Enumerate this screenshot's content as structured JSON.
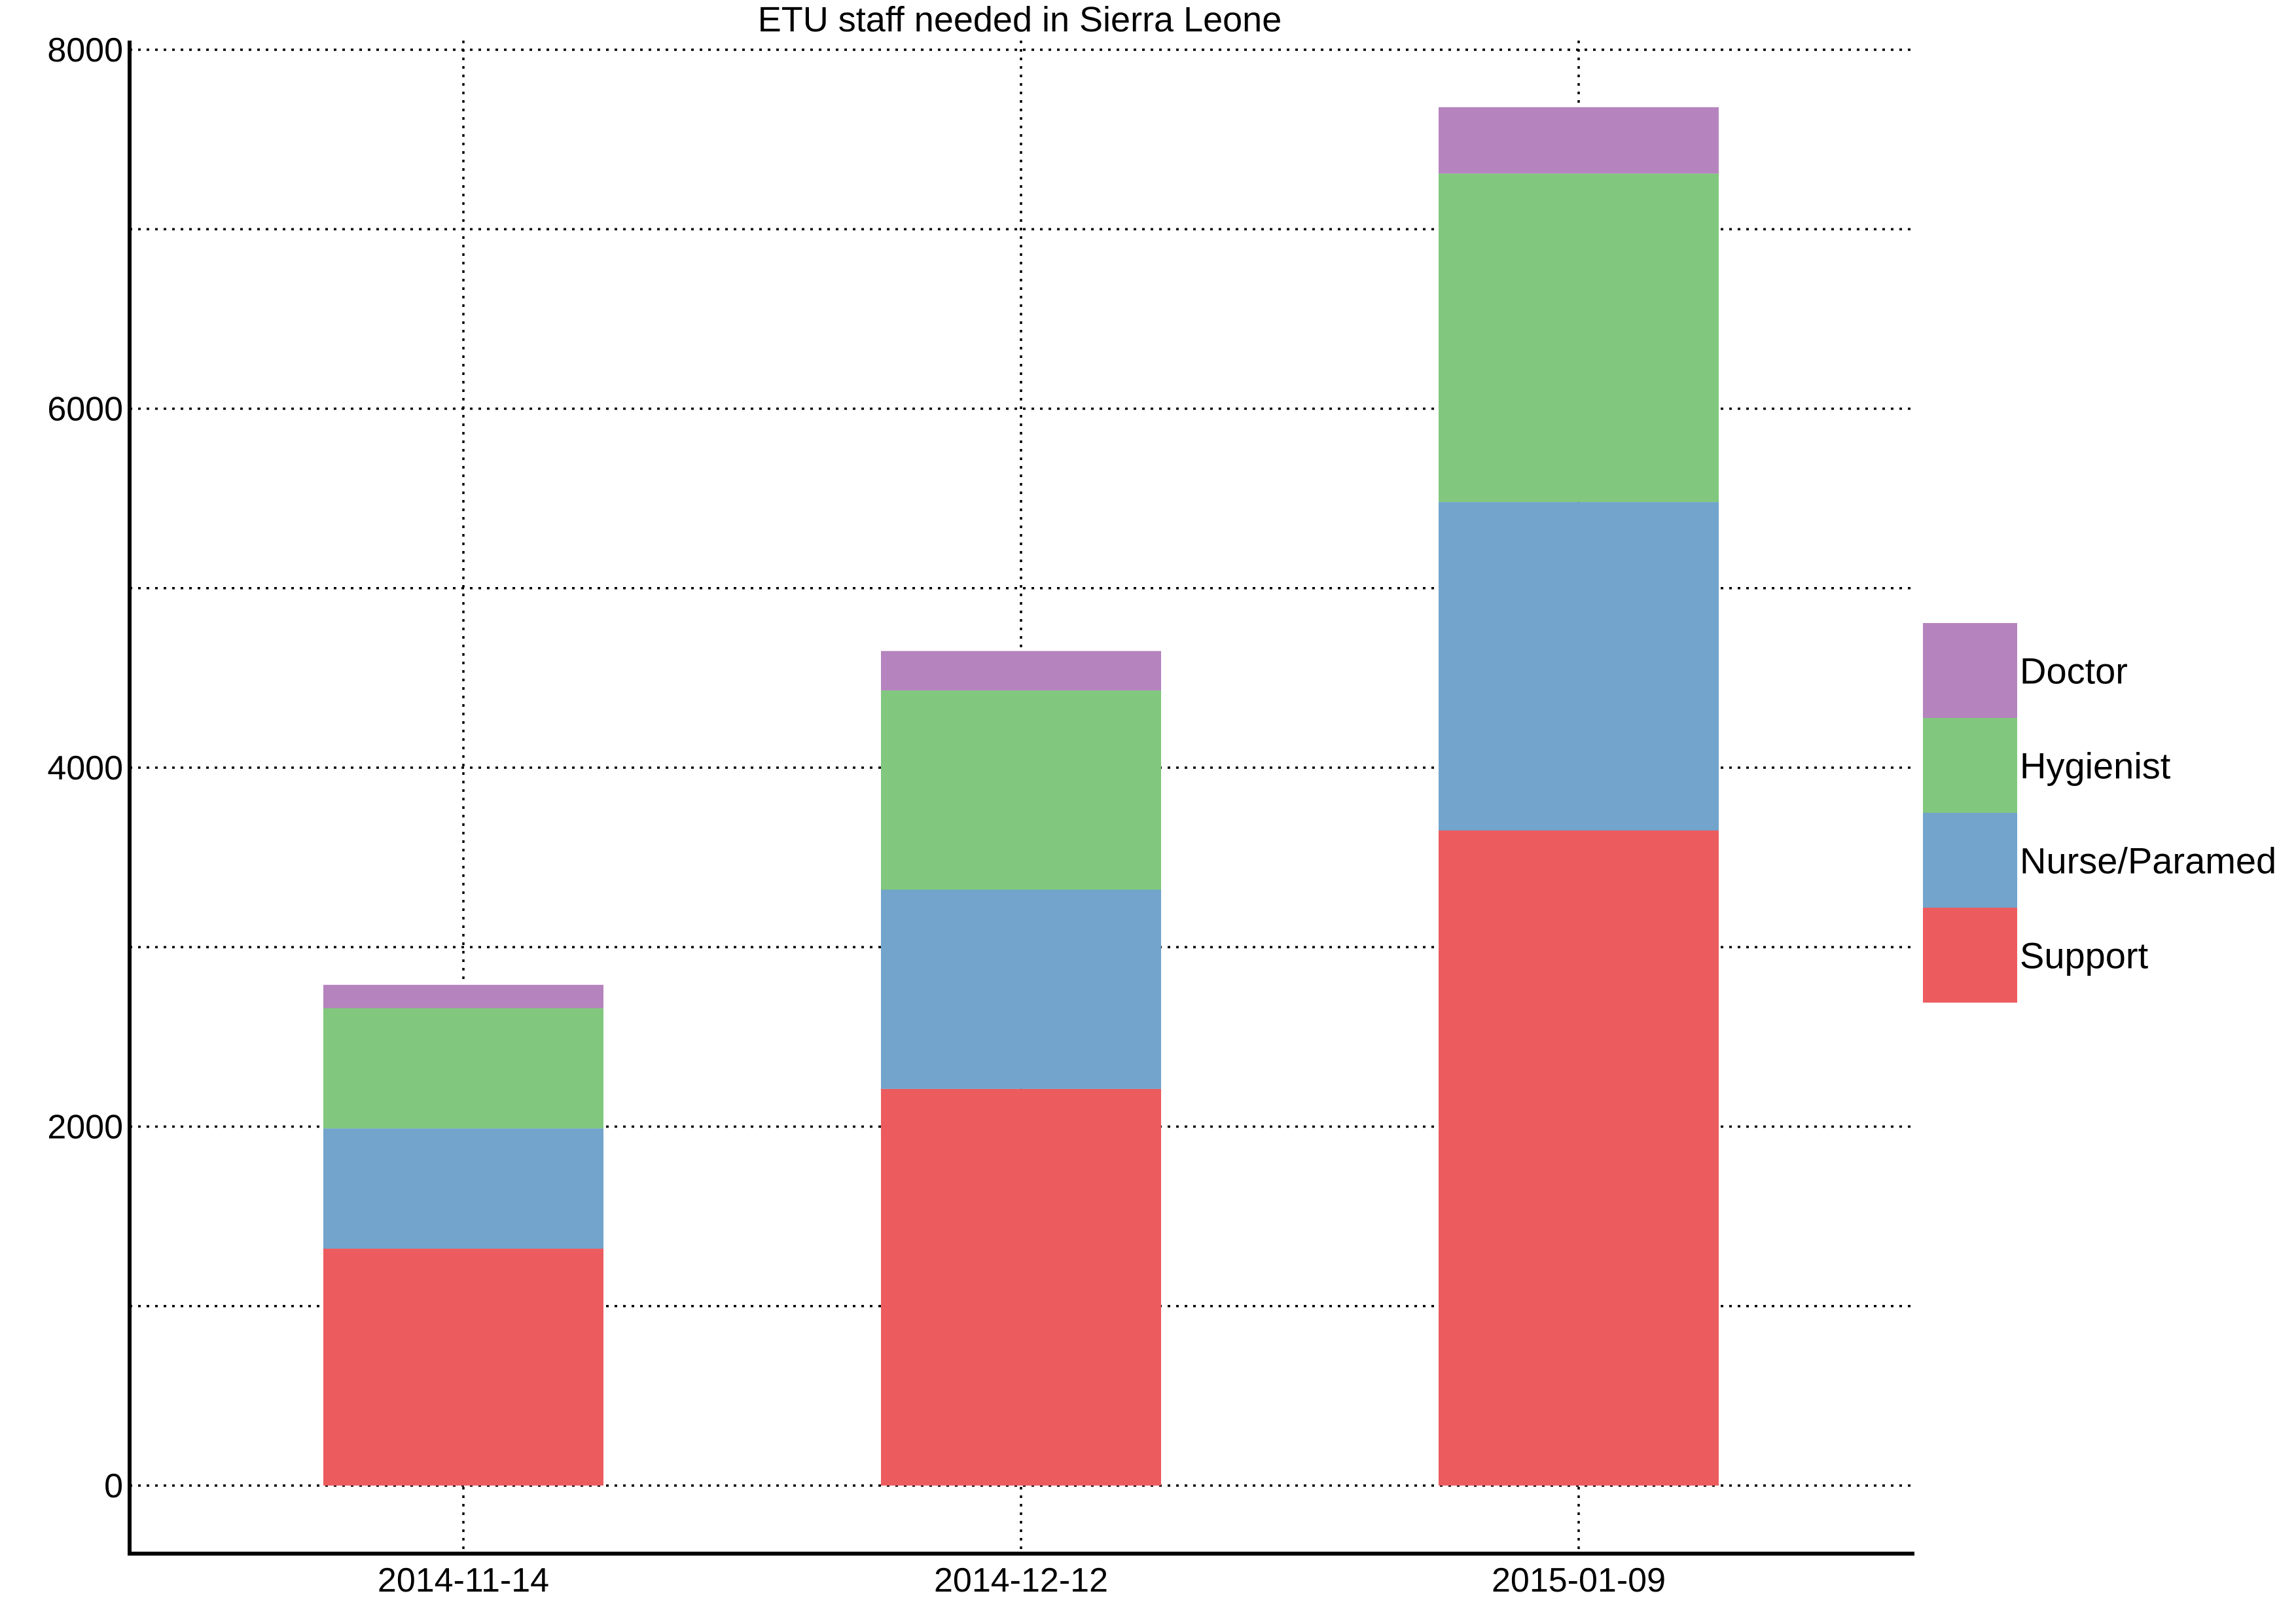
{
  "chart_data": {
    "type": "bar",
    "stacked": true,
    "title": "ETU staff needed in Sierra Leone",
    "xlabel": "",
    "ylabel": "",
    "categories": [
      "2014-11-14",
      "2014-12-12",
      "2015-01-09"
    ],
    "series": [
      {
        "name": "Support",
        "color": "#ec5c5f",
        "values": [
          1320,
          2210,
          3650
        ]
      },
      {
        "name": "Nurse/Paramed",
        "color": "#72a4cc",
        "values": [
          670,
          1110,
          1830
        ]
      },
      {
        "name": "Hygienist",
        "color": "#81c87e",
        "values": [
          670,
          1110,
          1830
        ]
      },
      {
        "name": "Doctor",
        "color": "#b584be",
        "values": [
          130,
          220,
          370
        ]
      }
    ],
    "ylim": [
      -380,
      8000
    ],
    "yticks": [
      0,
      1000,
      2000,
      3000,
      4000,
      5000,
      6000,
      7000,
      8000
    ],
    "ytick_labels": [
      "0",
      "",
      "2000",
      "",
      "4000",
      "",
      "6000",
      "",
      "8000"
    ],
    "grid": true,
    "legend": {
      "placement": "right",
      "order": [
        "Doctor",
        "Hygienist",
        "Nurse/Paramed",
        "Support"
      ]
    }
  }
}
